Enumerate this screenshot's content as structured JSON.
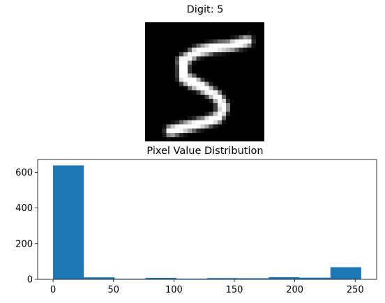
{
  "top_panel": {
    "title": "Digit: 5"
  },
  "chart_data": {
    "type": "bar",
    "title": "Pixel Value Distribution",
    "xlabel": "",
    "ylabel": "",
    "bins": [
      {
        "x0": 0.0,
        "x1": 25.5,
        "count": 639
      },
      {
        "x0": 25.5,
        "x1": 51.0,
        "count": 11
      },
      {
        "x0": 51.0,
        "x1": 76.5,
        "count": 3
      },
      {
        "x0": 76.5,
        "x1": 102.0,
        "count": 8
      },
      {
        "x0": 102.0,
        "x1": 127.5,
        "count": 4
      },
      {
        "x0": 127.5,
        "x1": 153.0,
        "count": 7
      },
      {
        "x0": 153.0,
        "x1": 178.5,
        "count": 6
      },
      {
        "x0": 178.5,
        "x1": 204.0,
        "count": 12
      },
      {
        "x0": 204.0,
        "x1": 229.5,
        "count": 9
      },
      {
        "x0": 229.5,
        "x1": 255.0,
        "count": 68
      }
    ],
    "xlim": [
      -12.75,
      267.75
    ],
    "ylim": [
      0,
      672
    ],
    "x_ticks": [
      0,
      50,
      100,
      150,
      200,
      250
    ],
    "y_ticks": [
      0,
      200,
      400,
      600
    ],
    "bar_color": "#1f77b4"
  }
}
